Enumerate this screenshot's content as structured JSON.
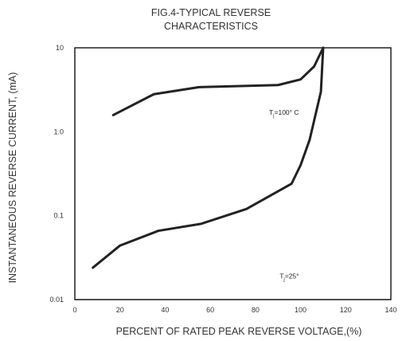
{
  "chart_data": {
    "type": "line",
    "title_lines": [
      "FIG.4-TYPICAL REVERSE",
      "CHARACTERISTICS"
    ],
    "xlabel": "PERCENT OF RATED PEAK REVERSE VOLTAGE,(%)",
    "ylabel": "INSTANTANEOUS REVERSE CURRENT, (mA)",
    "x_axis": {
      "scale": "linear",
      "range": [
        0,
        140
      ],
      "ticks": [
        0,
        20,
        40,
        60,
        80,
        100,
        120,
        140
      ],
      "tick_labels": [
        "0",
        "20",
        "40",
        "60",
        "80",
        "100",
        "120",
        "140"
      ]
    },
    "y_axis": {
      "scale": "log",
      "range": [
        0.01,
        10
      ],
      "ticks": [
        0.01,
        0.1,
        1.0,
        10
      ],
      "tick_labels": [
        "0.01",
        "0.1",
        "1.0",
        "10"
      ]
    },
    "grid": true,
    "series": [
      {
        "points": [
          [
            17,
            1.58
          ],
          [
            35,
            2.8
          ],
          [
            55,
            3.4
          ],
          [
            90,
            3.6
          ],
          [
            100,
            4.2
          ],
          [
            106,
            6.0
          ],
          [
            110,
            10
          ]
        ]
      },
      {
        "points": [
          [
            8,
            0.024
          ],
          [
            20,
            0.044
          ],
          [
            37,
            0.066
          ],
          [
            56,
            0.08
          ],
          [
            76,
            0.12
          ],
          [
            96,
            0.24
          ],
          [
            100,
            0.4
          ],
          [
            104,
            0.8
          ],
          [
            109,
            3.0
          ],
          [
            110,
            10
          ]
        ]
      }
    ],
    "annotations": [
      {
        "main": "T",
        "sub": "j",
        "rest": "=100° C",
        "x": 100,
        "y": 1.7
      },
      {
        "main": "T",
        "sub": "j",
        "rest": "=25°",
        "x": 100,
        "y": 0.019
      }
    ],
    "colors": {
      "line": "#222222",
      "grid": "#111111",
      "background": "#ffffff"
    }
  }
}
